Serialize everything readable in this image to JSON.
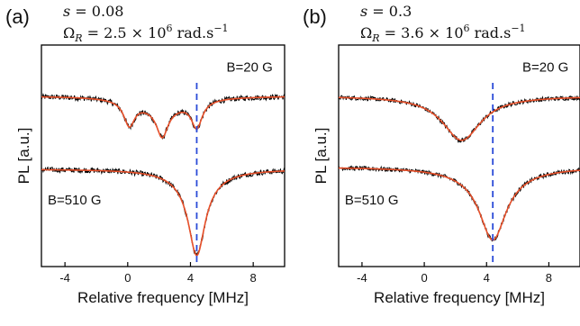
{
  "chart_data": [
    {
      "type": "line",
      "panel_label": "(a)",
      "params": {
        "s_symbol": "s",
        "s_value": " = 0.08",
        "omega_symbol": "Ω",
        "omega_sub": "R",
        "omega_value": " = 2.5 × 10",
        "omega_exp": "6",
        "omega_unit": " rad.s",
        "omega_unit_exp": "−1"
      },
      "xlabel": "Relative frequency [MHz]",
      "ylabel": "PL [a.u.]",
      "xlim": [
        -5.5,
        10
      ],
      "ylim": [
        0,
        1
      ],
      "xticks": [
        -4,
        0,
        4,
        8
      ],
      "dashed_line_x": 4.4,
      "grid": false,
      "annotations": [
        {
          "text": "B=20 G",
          "x": 6.3,
          "y": 0.88
        },
        {
          "text": "B=510 G",
          "x": -5.1,
          "y": 0.28
        }
      ],
      "series": [
        {
          "label": "B=20 G",
          "baseline": 0.77,
          "dips": [
            {
              "center": 0.1,
              "depth": 0.11,
              "width": 0.85
            },
            {
              "center": 2.2,
              "depth": 0.12,
              "width": 0.85
            },
            {
              "center": 4.4,
              "depth": 0.12,
              "width": 0.85
            }
          ],
          "broad_dip": {
            "center": 2.2,
            "depth": 0.06,
            "width": 3.5
          },
          "noise": 0.012
        },
        {
          "label": "B=510 G",
          "baseline": 0.44,
          "dips": [
            {
              "center": 4.4,
              "depth": 0.33,
              "width": 1.25
            }
          ],
          "broad_dip": {
            "center": 4.4,
            "depth": 0.06,
            "width": 3.2
          },
          "noise": 0.012
        }
      ]
    },
    {
      "type": "line",
      "panel_label": "(b)",
      "params": {
        "s_symbol": "s",
        "s_value": " = 0.3",
        "omega_symbol": "Ω",
        "omega_sub": "R",
        "omega_value": " = 3.6 × 10",
        "omega_exp": "6",
        "omega_unit": " rad.s",
        "omega_unit_exp": "−1"
      },
      "xlabel": "Relative frequency [MHz]",
      "ylabel": "PL [a.u.]",
      "xlim": [
        -5.5,
        10
      ],
      "ylim": [
        0,
        1
      ],
      "xticks": [
        -4,
        0,
        4,
        8
      ],
      "dashed_line_x": 4.4,
      "grid": false,
      "annotations": [
        {
          "text": "B=20 G",
          "x": 6.3,
          "y": 0.88
        },
        {
          "text": "B=510 G",
          "x": -5.1,
          "y": 0.28
        }
      ],
      "series": [
        {
          "label": "B=20 G",
          "baseline": 0.77,
          "dips": [
            {
              "center": 2.4,
              "depth": 0.2,
              "width": 3.0
            }
          ],
          "broad_dip": {
            "center": 2.4,
            "depth": 0.0,
            "width": 3.0
          },
          "noise": 0.01
        },
        {
          "label": "B=510 G",
          "baseline": 0.45,
          "dips": [
            {
              "center": 4.4,
              "depth": 0.28,
              "width": 2.0
            }
          ],
          "broad_dip": {
            "center": 4.4,
            "depth": 0.05,
            "width": 4.5
          },
          "noise": 0.01
        }
      ]
    }
  ],
  "colors": {
    "data": "#000000",
    "fit": "#e8502a",
    "dashed": "#2b4bd8",
    "axis": "#000000"
  }
}
